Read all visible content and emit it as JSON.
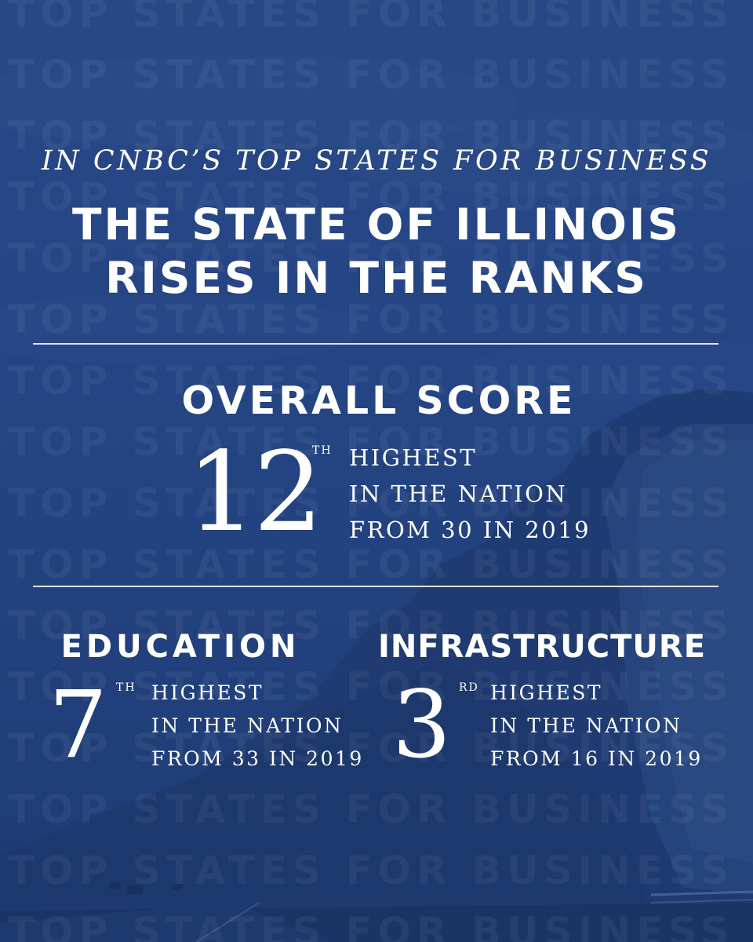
{
  "watermark_text": "TOP STATES FOR BUSINESS",
  "header": {
    "subtitle": "IN CNBC’S TOP STATES FOR BUSINESS",
    "title_line1": "THE STATE OF ILLINOIS",
    "title_line2": "RISES IN THE RANKS"
  },
  "overall": {
    "title": "OVERALL SCORE",
    "rank": "12",
    "suffix": "TH",
    "line1": "HIGHEST",
    "line2": "IN THE NATION",
    "line3": "FROM 30 IN 2019"
  },
  "education": {
    "title": "EDUCATION",
    "rank": "7",
    "suffix": "TH",
    "line1": "HIGHEST",
    "line2": "IN THE NATION",
    "line3": "FROM 33 IN 2019"
  },
  "infrastructure": {
    "title": "INFRASTRUCTURE",
    "rank": "3",
    "suffix": "RD",
    "line1": "HIGHEST",
    "line2": "IN THE NATION",
    "line3": "FROM 16 IN 2019"
  },
  "colors": {
    "overlay": "#23437f",
    "text": "#ffffff"
  }
}
